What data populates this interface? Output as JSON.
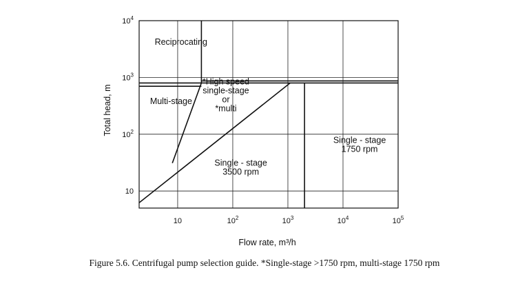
{
  "chart_data": {
    "type": "line",
    "title": "",
    "xlabel": "Flow rate, m³/h",
    "ylabel": "Total head, m",
    "x_scale": "log",
    "y_scale": "log",
    "xlim": [
      2,
      100000
    ],
    "ylim": [
      5,
      10000
    ],
    "x_ticks": [
      {
        "value": 10,
        "base": "10",
        "exp": ""
      },
      {
        "value": 100,
        "base": "10",
        "exp": "2"
      },
      {
        "value": 1000,
        "base": "10",
        "exp": "3"
      },
      {
        "value": 10000,
        "base": "10",
        "exp": "4"
      },
      {
        "value": 100000,
        "base": "10",
        "exp": "5"
      }
    ],
    "y_ticks": [
      {
        "value": 10,
        "base": "10",
        "exp": ""
      },
      {
        "value": 100,
        "base": "10",
        "exp": "2"
      },
      {
        "value": 1000,
        "base": "10",
        "exp": "3"
      },
      {
        "value": 10000,
        "base": "10",
        "exp": "4"
      }
    ],
    "grid": true,
    "boundaries": [
      {
        "points": [
          [
            2,
            6.2
          ],
          [
            1100,
            800
          ]
        ]
      },
      {
        "points": [
          [
            8,
            31
          ],
          [
            27,
            800
          ]
        ]
      },
      {
        "points": [
          [
            27,
            800
          ],
          [
            27,
            10000
          ]
        ]
      },
      {
        "points": [
          [
            2,
            800
          ],
          [
            100000,
            800
          ]
        ]
      },
      {
        "points": [
          [
            2,
            700
          ],
          [
            27,
            700
          ]
        ]
      },
      {
        "points": [
          [
            27,
            870
          ],
          [
            100000,
            870
          ]
        ]
      },
      {
        "points": [
          [
            2000,
            5
          ],
          [
            2000,
            800
          ]
        ]
      }
    ],
    "regions": [
      {
        "lines": [
          "Reciprocating"
        ],
        "x": 11.5,
        "y": 4200
      },
      {
        "lines": [
          "Multi-stage"
        ],
        "x": 7.6,
        "y": 380
      },
      {
        "lines": [
          "*High speed",
          "single-stage",
          "or",
          "*multi"
        ],
        "x": 75,
        "y": 490
      },
      {
        "lines": [
          "Single - stage",
          "3500 rpm"
        ],
        "x": 140,
        "y": 26
      },
      {
        "lines": [
          "Single - stage",
          "1750 rpm"
        ],
        "x": 20000,
        "y": 65
      }
    ]
  },
  "caption": "Figure 5.6.   Centrifugal pump selection guide. *Single-stage >1750 rpm, multi-stage 1750 rpm"
}
